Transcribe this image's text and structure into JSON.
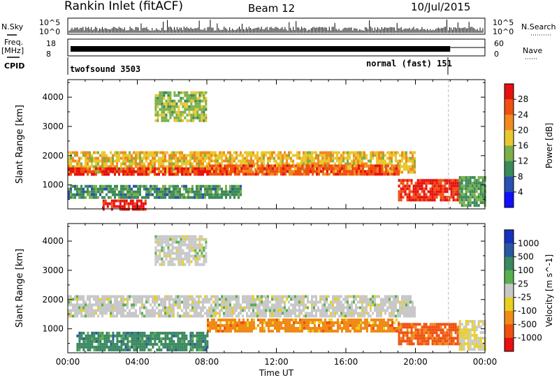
{
  "header": {
    "station": "Rankin Inlet (fitACF)",
    "beam": "Beam 12",
    "date": "10/Jul/2015"
  },
  "top_strips": {
    "nsky_label": "N.Sky",
    "nsearch_label": "N.Search",
    "noise_ticks": [
      "10^5",
      "10^0"
    ],
    "freq_label": "Freq.",
    "freq_unit": "[MHz]",
    "freq_ticks": [
      "18",
      "8"
    ],
    "nave_label": "Nave",
    "nave_ticks": [
      "60",
      "0"
    ],
    "cpid_label": "CPID",
    "cpid_segments": [
      {
        "name": "twofsound 3503",
        "start_hour": 0.0,
        "end_hour": 22.0
      },
      {
        "name": "normal (fast) 151",
        "start_hour": 22.0,
        "end_hour": 24.0
      }
    ]
  },
  "colors": {
    "power_scale": [
      "#1010ff",
      "#2a50b0",
      "#3a8a5a",
      "#7ab04a",
      "#e8c830",
      "#f08a20",
      "#f05010",
      "#e81010"
    ],
    "velocity_scale": [
      "#1830c0",
      "#2858a0",
      "#3a8860",
      "#58b050",
      "#c8c8c8",
      "#e8d020",
      "#f08a18",
      "#f05010",
      "#e81010"
    ]
  },
  "chart_data": [
    {
      "type": "heatmap",
      "panel": "power",
      "ylabel": "Slant Range [km]",
      "xlabel": "Time UT",
      "x_ticks": [
        "00:00",
        "04:00",
        "08:00",
        "12:00",
        "16:00",
        "20:00",
        "00:00"
      ],
      "xlim_hours": [
        0,
        24
      ],
      "y_ticks": [
        1000,
        2000,
        3000,
        4000
      ],
      "ylim": [
        180,
        4600
      ],
      "colorbar_label": "Power [dB]",
      "colorbar_ticks": [
        4,
        8,
        12,
        16,
        20,
        24,
        28
      ],
      "colorbar_range": [
        0,
        32
      ],
      "bands": [
        {
          "hour_start": 0.0,
          "hour_end": 20.0,
          "range_low": 1400,
          "range_high": 2150,
          "level": 0.6
        },
        {
          "hour_start": 0.0,
          "hour_end": 8.0,
          "range_low": 1350,
          "range_high": 1600,
          "level": 0.95
        },
        {
          "hour_start": 8.0,
          "hour_end": 19.0,
          "range_low": 1400,
          "range_high": 1700,
          "level": 0.85
        },
        {
          "hour_start": 19.0,
          "hour_end": 22.5,
          "range_low": 500,
          "range_high": 1200,
          "level": 0.95
        },
        {
          "hour_start": 2.0,
          "hour_end": 4.5,
          "range_low": 200,
          "range_high": 500,
          "level": 1.0
        },
        {
          "hour_start": 0.0,
          "hour_end": 10.0,
          "range_low": 600,
          "range_high": 1000,
          "level": 0.3
        },
        {
          "hour_start": 5.0,
          "hour_end": 8.0,
          "range_low": 3200,
          "range_high": 4200,
          "level": 0.45
        },
        {
          "hour_start": 22.5,
          "hour_end": 24.0,
          "range_low": 300,
          "range_high": 1300,
          "level": 0.35
        }
      ]
    },
    {
      "type": "heatmap",
      "panel": "velocity",
      "ylabel": "Slant Range [km]",
      "xlabel": "Time UT",
      "x_ticks": [
        "00:00",
        "04:00",
        "08:00",
        "12:00",
        "16:00",
        "20:00",
        "00:00"
      ],
      "xlim_hours": [
        0,
        24
      ],
      "y_ticks": [
        1000,
        2000,
        3000,
        4000
      ],
      "ylim": [
        180,
        4600
      ],
      "colorbar_label": "Velocity [m s^-1]",
      "colorbar_ticks": [
        1000,
        500,
        100,
        25,
        -25,
        -100,
        -500,
        -1000
      ],
      "bands": [
        {
          "hour_start": 0.0,
          "hour_end": 20.0,
          "range_low": 1400,
          "range_high": 2150,
          "level": 0.0
        },
        {
          "hour_start": 8.0,
          "hour_end": 19.0,
          "range_low": 900,
          "range_high": 1350,
          "level": -0.5
        },
        {
          "hour_start": 19.0,
          "hour_end": 22.5,
          "range_low": 500,
          "range_high": 1200,
          "level": -0.7
        },
        {
          "hour_start": 0.5,
          "hour_end": 8.0,
          "range_low": 300,
          "range_high": 900,
          "level": 0.5
        },
        {
          "hour_start": 5.0,
          "hour_end": 8.0,
          "range_low": 3200,
          "range_high": 4200,
          "level": 0.0
        },
        {
          "hour_start": 22.5,
          "hour_end": 24.0,
          "range_low": 300,
          "range_high": 1300,
          "level": -0.1
        }
      ]
    }
  ]
}
